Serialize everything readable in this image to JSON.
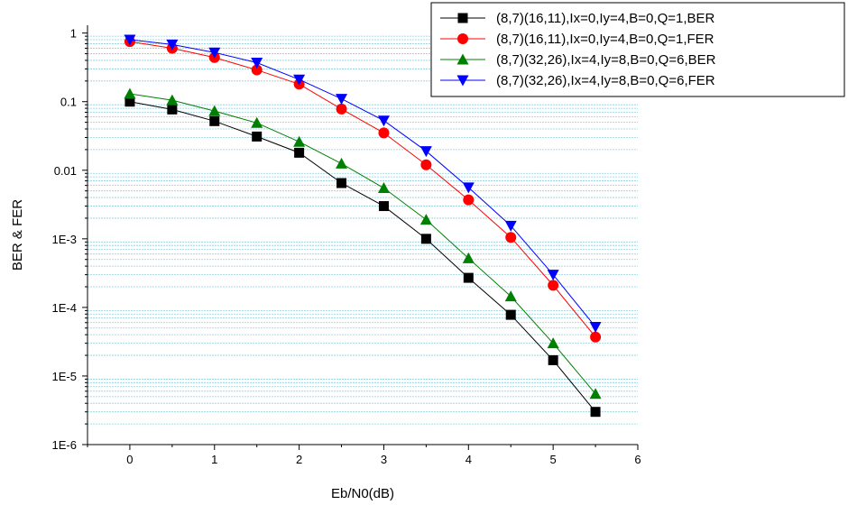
{
  "chart_data": {
    "type": "line",
    "xlabel": "Eb/N0(dB)",
    "ylabel": "BER & FER",
    "xlim": [
      -0.5,
      6
    ],
    "ylim": [
      1e-06,
      1.3
    ],
    "yscale": "log",
    "grid": "minor horizontal gridlines",
    "legend_position": "top-right",
    "x_ticks": [
      "0",
      "1",
      "2",
      "3",
      "4",
      "5",
      "6"
    ],
    "x_tick_values": [
      0,
      1,
      2,
      3,
      4,
      5,
      6
    ],
    "y_ticks": [
      "1",
      "0.1",
      "0.01",
      "1E-3",
      "1E-4",
      "1E-5",
      "1E-6"
    ],
    "y_tick_values": [
      1,
      0.1,
      0.01,
      0.001,
      0.0001,
      1e-05,
      1e-06
    ],
    "x": [
      0,
      0.5,
      1,
      1.5,
      2,
      2.5,
      3,
      3.5,
      4,
      4.5,
      5,
      5.5
    ],
    "series": [
      {
        "name": "(8,7)(16,11),Ix=0,Iy=4,B=0,Q=1,BER",
        "color": "#000000",
        "marker": "square",
        "values": [
          0.1,
          0.077,
          0.052,
          0.031,
          0.018,
          0.0065,
          0.003,
          0.001,
          0.00027,
          7.8e-05,
          1.7e-05,
          3e-06
        ]
      },
      {
        "name": "(8,7)(16,11),Ix=0,Iy=4,B=0,Q=1,FER",
        "color": "#ff0000",
        "marker": "circle",
        "values": [
          0.75,
          0.6,
          0.44,
          0.29,
          0.18,
          0.078,
          0.035,
          0.012,
          0.0037,
          0.00105,
          0.00021,
          3.7e-05
        ]
      },
      {
        "name": "(8,7)(32,26),Ix=4,Iy=8,B=0,Q=6,BER",
        "color": "#008000",
        "marker": "triangle-up",
        "values": [
          0.13,
          0.105,
          0.073,
          0.049,
          0.026,
          0.0125,
          0.0055,
          0.0019,
          0.00052,
          0.000145,
          3e-05,
          5.5e-06
        ]
      },
      {
        "name": "(8,7)(32,26),Ix=4,Iy=8,B=0,Q=6,FER",
        "color": "#0000ff",
        "marker": "triangle-down",
        "values": [
          0.8,
          0.68,
          0.52,
          0.37,
          0.21,
          0.11,
          0.053,
          0.019,
          0.0056,
          0.00155,
          0.0003,
          5.2e-05
        ]
      }
    ]
  }
}
